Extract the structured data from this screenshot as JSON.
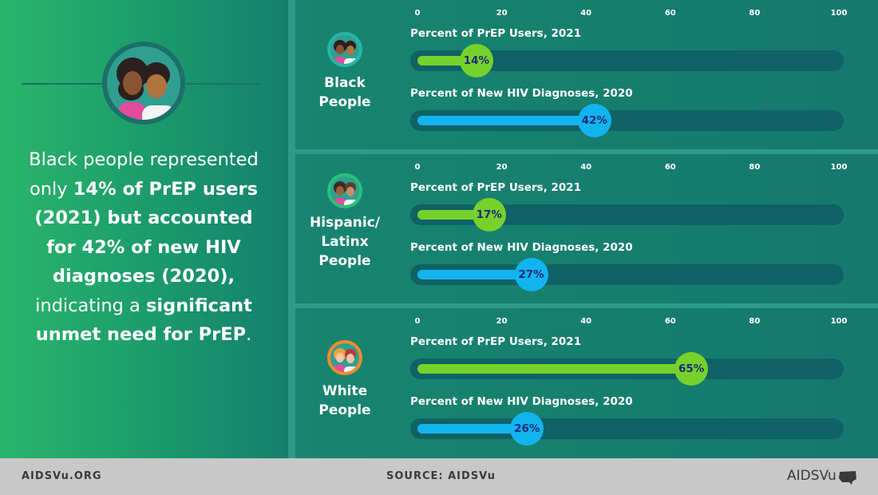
{
  "headline": {
    "part1": "Black people represented only ",
    "bold1": "14% of PrEP users (2021) but accounted for 42% of new HIV diagnoses (2020),",
    "part2": " indicating a ",
    "bold2": "significant unmet need for PrEP",
    "part3": "."
  },
  "axis_ticks": [
    "0",
    "20",
    "40",
    "60",
    "80",
    "100"
  ],
  "colors": {
    "prep": "#77d12b",
    "hiv": "#12b4f0",
    "track": "#0f6265",
    "label_text": "#1c2a7a"
  },
  "chart_data": {
    "type": "bar",
    "orientation": "horizontal",
    "xlim": [
      0,
      100
    ],
    "series_titles": {
      "prep": "Percent of PrEP Users, 2021",
      "hiv": "Percent of New HIV Diagnoses, 2020"
    },
    "groups": [
      {
        "line1": "Black",
        "line2": "People",
        "line3": "",
        "prep_value": 14,
        "prep_label": "14%",
        "hiv_value": 42,
        "hiv_label": "42%",
        "icon": "black-people-icon"
      },
      {
        "line1": "Hispanic/",
        "line2": "Latinx",
        "line3": "People",
        "prep_value": 17,
        "prep_label": "17%",
        "hiv_value": 27,
        "hiv_label": "27%",
        "icon": "hispanic-latinx-people-icon"
      },
      {
        "line1": "White",
        "line2": "People",
        "line3": "",
        "prep_value": 65,
        "prep_label": "65%",
        "hiv_value": 26,
        "hiv_label": "26%",
        "icon": "white-people-icon"
      }
    ]
  },
  "footer": {
    "site": "AIDSVu.ORG",
    "source": "SOURCE: AIDSVu",
    "brand": "AIDSVu"
  }
}
